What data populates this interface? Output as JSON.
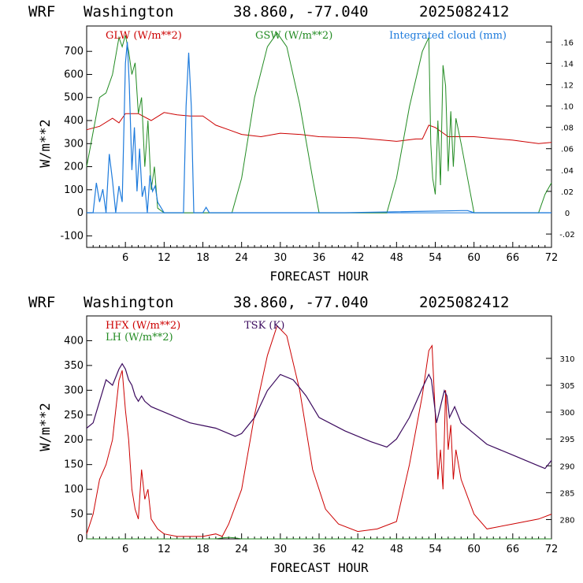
{
  "charts": [
    {
      "header": {
        "model": "WRF",
        "location": "Washington",
        "coords": "38.860, -77.040",
        "run": "2025082412"
      },
      "xlabel": "FORECAST HOUR",
      "ylabel": "W/m**2",
      "xticks": [
        6,
        12,
        18,
        24,
        30,
        36,
        42,
        48,
        54,
        60,
        66,
        72
      ],
      "yticks": [
        -100,
        0,
        100,
        200,
        300,
        400,
        500,
        600,
        700
      ],
      "rticks": [
        "-.02",
        "0",
        ".02",
        ".04",
        ".06",
        ".08",
        ".10",
        ".12",
        ".14",
        ".16"
      ],
      "legend": [
        {
          "label": "GLW (W/m**2)",
          "color": "#cc0000"
        },
        {
          "label": "GSW (W/m**2)",
          "color": "#228b22"
        },
        {
          "label": "Integrated cloud (mm)",
          "color": "#1e7bdc"
        }
      ]
    },
    {
      "header": {
        "model": "WRF",
        "location": "Washington",
        "coords": "38.860, -77.040",
        "run": "2025082412"
      },
      "xlabel": "FORECAST HOUR",
      "ylabel": "W/m**2",
      "xticks": [
        6,
        12,
        18,
        24,
        30,
        36,
        42,
        48,
        54,
        60,
        66,
        72
      ],
      "yticks": [
        0,
        50,
        100,
        150,
        200,
        250,
        300,
        350,
        400
      ],
      "rticks": [
        "280",
        "285",
        "290",
        "295",
        "300",
        "305",
        "310"
      ],
      "legend": [
        {
          "label": "HFX (W/m**2)",
          "color": "#cc0000"
        },
        {
          "label": "LH  (W/m**2)",
          "color": "#228b22"
        },
        {
          "label": "TSK (K)",
          "color": "#3b0a5e"
        }
      ]
    }
  ],
  "chart_data": [
    {
      "type": "line",
      "xlabel": "FORECAST HOUR",
      "ylabel": "W/m**2",
      "xlim": [
        0,
        72
      ],
      "ylim": [
        -150,
        810
      ],
      "y2lim": [
        -0.0325,
        0.175
      ],
      "series": [
        {
          "name": "GLW (W/m**2)",
          "color": "#cc0000",
          "axis": "left",
          "x": [
            0,
            2,
            4,
            5,
            6,
            8,
            10,
            12,
            14,
            16,
            18,
            19,
            20,
            22,
            24,
            27,
            30,
            33,
            36,
            42,
            48,
            51,
            52,
            53,
            54,
            55,
            56,
            60,
            66,
            70,
            72
          ],
          "y": [
            360,
            375,
            410,
            390,
            430,
            430,
            400,
            435,
            425,
            420,
            420,
            400,
            380,
            360,
            340,
            330,
            345,
            340,
            330,
            325,
            310,
            320,
            320,
            380,
            370,
            350,
            330,
            330,
            315,
            300,
            305
          ]
        },
        {
          "name": "GSW (W/m**2)",
          "color": "#228b22",
          "axis": "left",
          "x": [
            0,
            1,
            2,
            3,
            4,
            5,
            5.5,
            6,
            6.5,
            7,
            7.5,
            8,
            8.5,
            9,
            9.5,
            10,
            10.5,
            11,
            12,
            22.5,
            24,
            26,
            28,
            29.5,
            31,
            33,
            35,
            36,
            46.5,
            48,
            50,
            52,
            53,
            53.3,
            53.6,
            54,
            54.4,
            54.8,
            55.2,
            55.6,
            56,
            56.4,
            56.8,
            57.2,
            58,
            59,
            60,
            70,
            71,
            72
          ],
          "y": [
            200,
            350,
            500,
            520,
            600,
            760,
            720,
            770,
            700,
            600,
            650,
            430,
            500,
            200,
            400,
            100,
            200,
            20,
            0,
            0,
            150,
            500,
            720,
            780,
            720,
            470,
            150,
            0,
            0,
            150,
            460,
            700,
            760,
            300,
            150,
            80,
            400,
            120,
            640,
            550,
            180,
            440,
            200,
            410,
            300,
            150,
            0,
            0,
            80,
            130
          ]
        },
        {
          "name": "Integrated cloud (mm)",
          "color": "#1e7bdc",
          "axis": "right",
          "x": [
            0,
            1,
            1.5,
            2,
            2.5,
            3,
            3.5,
            4,
            4.5,
            5,
            5.5,
            6,
            6.3,
            6.6,
            7,
            7.4,
            7.8,
            8.2,
            8.6,
            9,
            9.4,
            9.8,
            10.2,
            10.6,
            11,
            12,
            14,
            15,
            15.4,
            15.8,
            16.2,
            16.6,
            17,
            18,
            18.5,
            19,
            30,
            40,
            58,
            59,
            60,
            72
          ],
          "y": [
            0,
            0,
            0.028,
            0.01,
            0.022,
            0,
            0.055,
            0.03,
            0,
            0.025,
            0.01,
            0.14,
            0.16,
            0.12,
            0.04,
            0.08,
            0.02,
            0.06,
            0.015,
            0.025,
            0,
            0.035,
            0.02,
            0.025,
            0.01,
            0,
            0,
            0,
            0.1,
            0.15,
            0.1,
            0,
            0,
            0,
            0.005,
            0,
            0,
            0,
            0.002,
            0.002,
            0,
            0
          ]
        }
      ]
    },
    {
      "type": "line",
      "xlabel": "FORECAST HOUR",
      "ylabel": "W/m**2",
      "xlim": [
        0,
        72
      ],
      "ylim": [
        0,
        450
      ],
      "y2lim": [
        276.4,
        317.9
      ],
      "series": [
        {
          "name": "HFX (W/m**2)",
          "color": "#cc0000",
          "axis": "left",
          "x": [
            0,
            1,
            2,
            3,
            4,
            5,
            5.5,
            6,
            6.5,
            7,
            7.5,
            8,
            8.5,
            9,
            9.5,
            10,
            11,
            12,
            14,
            16,
            18,
            20,
            21,
            22,
            24,
            26,
            28,
            29.5,
            31,
            33,
            35,
            37,
            39,
            42,
            45,
            48,
            50,
            52,
            53,
            53.5,
            54,
            54.4,
            54.8,
            55.2,
            55.6,
            56,
            56.4,
            56.8,
            57.2,
            58,
            60,
            62,
            66,
            70,
            72
          ],
          "y": [
            10,
            50,
            120,
            150,
            200,
            320,
            340,
            260,
            200,
            100,
            60,
            40,
            140,
            80,
            100,
            40,
            20,
            10,
            5,
            5,
            5,
            10,
            5,
            30,
            100,
            250,
            370,
            430,
            410,
            300,
            140,
            60,
            30,
            15,
            20,
            35,
            150,
            290,
            380,
            390,
            250,
            120,
            180,
            100,
            300,
            180,
            230,
            120,
            180,
            120,
            50,
            20,
            30,
            40,
            50
          ]
        },
        {
          "name": "LH  (W/m**2)",
          "color": "#228b22",
          "axis": "left",
          "x": [
            0,
            20,
            21,
            22,
            23,
            24,
            30,
            72
          ],
          "y": [
            0,
            0,
            2,
            3,
            2,
            0,
            0,
            0
          ]
        },
        {
          "name": "TSK (K)",
          "color": "#3b0a5e",
          "axis": "right",
          "x": [
            0,
            1,
            2,
            3,
            4,
            5,
            5.5,
            6,
            6.5,
            7,
            7.5,
            8,
            8.5,
            9,
            10,
            12,
            14,
            16,
            18,
            20,
            22,
            23,
            24,
            26,
            28,
            30,
            32,
            34,
            36,
            40,
            44,
            46.5,
            48,
            50,
            52,
            53,
            53.4,
            53.8,
            54.2,
            54.6,
            55,
            55.4,
            55.8,
            56.2,
            56.6,
            57,
            58,
            60,
            62,
            66,
            70,
            71,
            72
          ],
          "y": [
            297,
            298,
            302,
            306,
            305,
            308,
            309,
            308,
            306,
            305,
            303,
            302,
            303,
            302,
            301,
            300,
            299,
            298,
            297.5,
            297,
            296,
            295.5,
            296,
            299,
            304,
            307,
            306,
            303,
            299,
            296.5,
            294.5,
            293.5,
            295,
            299,
            304.5,
            307,
            306,
            302,
            298,
            300,
            302,
            304,
            303,
            299,
            300,
            301,
            298,
            296,
            294,
            292,
            290,
            289.5,
            291
          ]
        }
      ]
    }
  ]
}
